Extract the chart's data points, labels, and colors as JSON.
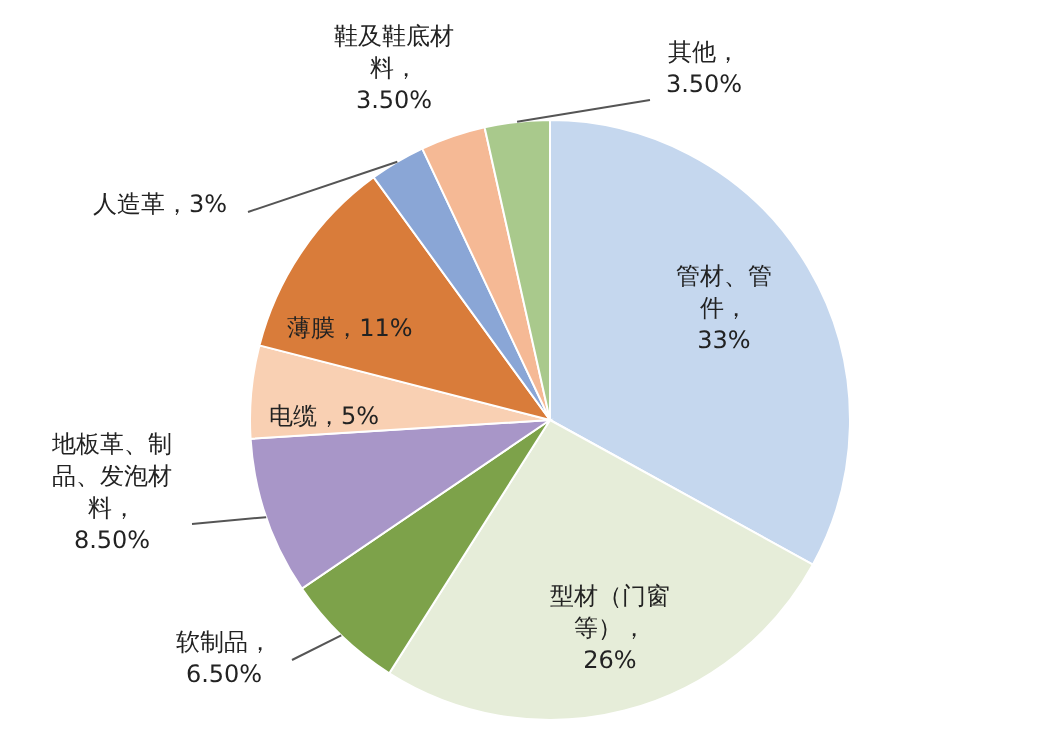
{
  "chart_data": {
    "type": "pie",
    "categories": [
      "管材、管件",
      "型材（门窗等）",
      "软制品",
      "地板革、制品、发泡材料",
      "电缆",
      "薄膜",
      "人造革",
      "鞋及鞋底材料",
      "其他"
    ],
    "values": [
      33,
      26,
      6.5,
      8.5,
      5,
      11,
      3,
      3.5,
      3.5
    ],
    "colors": [
      "#c5d7ee",
      "#e6edd9",
      "#7da24a",
      "#a896c8",
      "#f9d0b3",
      "#d97c3a",
      "#8aa6d6",
      "#f5b995",
      "#a9c98c"
    ],
    "value_labels": [
      "，33%",
      "，26%",
      "，6.50%",
      "，8.50%",
      "，5%",
      "，11%",
      "，3%",
      "，3.50%",
      "，3.50%"
    ]
  }
}
